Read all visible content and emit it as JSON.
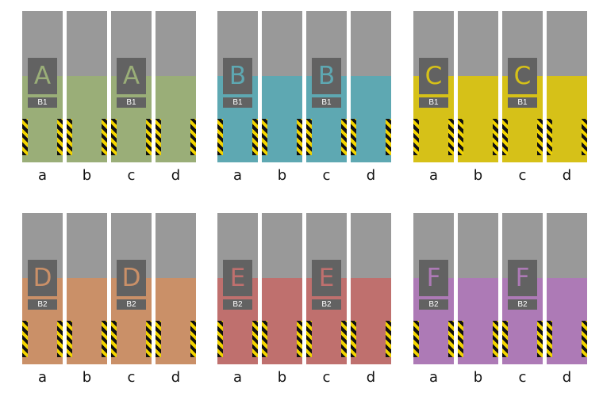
{
  "column_labels": [
    "a",
    "b",
    "c",
    "d"
  ],
  "groups": [
    {
      "letter": "A",
      "tag": "B1",
      "fill_color": "#9aae78",
      "letter_color": "#9aae78"
    },
    {
      "letter": "B",
      "tag": "B1",
      "fill_color": "#5ea8b2",
      "letter_color": "#5ea8b2"
    },
    {
      "letter": "C",
      "tag": "B1",
      "fill_color": "#d6c118",
      "letter_color": "#d6c118"
    },
    {
      "letter": "D",
      "tag": "B2",
      "fill_color": "#ca9068",
      "letter_color": "#ca9068"
    },
    {
      "letter": "E",
      "tag": "B2",
      "fill_color": "#bf706e",
      "letter_color": "#bf706e"
    },
    {
      "letter": "F",
      "tag": "B2",
      "fill_color": "#ad7ab6",
      "letter_color": "#ad7ab6"
    }
  ]
}
